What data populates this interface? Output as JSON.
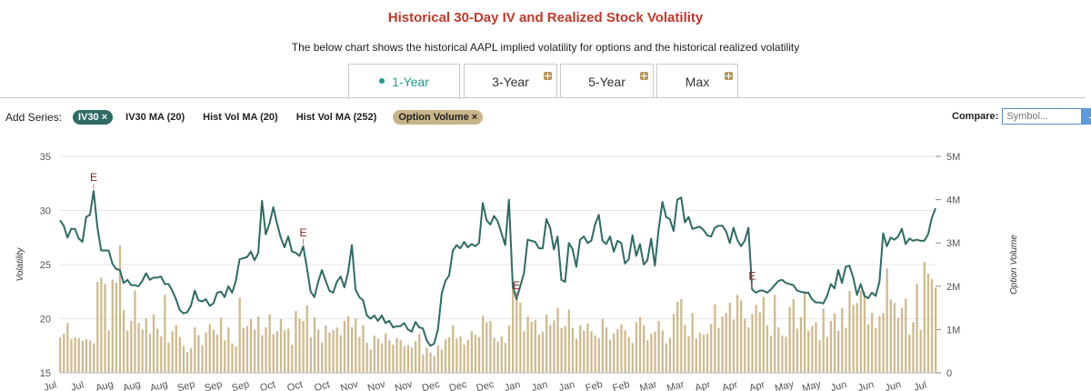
{
  "title": "Historical 30-Day IV and Realized Stock Volatility",
  "subtitle": "The below chart shows the historical AAPL implied volatility for options and the historical realized volatility",
  "tabs": [
    {
      "label": "1-Year",
      "active": true
    },
    {
      "label": "3-Year",
      "active": false
    },
    {
      "label": "5-Year",
      "active": false
    },
    {
      "label": "Max",
      "active": false
    }
  ],
  "series_bar": {
    "label": "Add Series:",
    "pills": [
      {
        "label": "IV30 ×",
        "style": "teal"
      },
      {
        "label": "IV30 MA (20)",
        "style": "plain"
      },
      {
        "label": "Hist Vol MA (20)",
        "style": "plain"
      },
      {
        "label": "Hist Vol MA (252)",
        "style": "plain"
      },
      {
        "label": "Option Volume ×",
        "style": "tan"
      }
    ]
  },
  "compare": {
    "label": "Compare:",
    "placeholder": "Symbol...",
    "button": "+"
  },
  "colors": {
    "iv_line": "#2e6b64",
    "volume_bar": "#cfba8f",
    "earnings_marker": "#8b1a1a",
    "title": "#c0392b",
    "tab_active": "#1f9c8f"
  },
  "chart_data": {
    "type": "line",
    "ylabel": "Volatility",
    "y2label": "Option Volume",
    "ylim": [
      15,
      35
    ],
    "yticks": [
      "35",
      "30",
      "25",
      "20",
      "15"
    ],
    "y2lim": [
      0,
      5000000
    ],
    "y2ticks": [
      "5M",
      "4M",
      "3M",
      "2M",
      "1M",
      "0"
    ],
    "xticks": [
      "Jul",
      "Jul",
      "Aug",
      "Aug",
      "Aug",
      "Sep",
      "Sep",
      "Sep",
      "Oct",
      "Oct",
      "Oct",
      "Nov",
      "Nov",
      "Nov",
      "Dec",
      "Dec",
      "Dec",
      "Jan",
      "Jan",
      "Jan",
      "Feb",
      "Feb",
      "Mar",
      "Mar",
      "Apr",
      "Apr",
      "Apr",
      "May",
      "May",
      "Jun",
      "Jun",
      "Jun",
      "Jul"
    ],
    "series": [
      {
        "name": "IV30",
        "type": "line",
        "values": [
          29.1,
          28.6,
          27.5,
          28.3,
          28.3,
          27.4,
          27.1,
          29.4,
          29.6,
          31.8,
          28.4,
          26.3,
          26.3,
          26.3,
          25.1,
          24.6,
          24.5,
          23.3,
          23.6,
          23.1,
          23.1,
          23.0,
          23.5,
          24.2,
          23.6,
          23.8,
          23.8,
          23.9,
          23.2,
          23.2,
          22.6,
          21.8,
          20.8,
          20.5,
          20.6,
          21.2,
          22.6,
          21.7,
          21.6,
          21.8,
          21.2,
          21.4,
          22.4,
          22.5,
          22.0,
          23.0,
          22.4,
          23.5,
          25.5,
          25.6,
          25.7,
          26.2,
          25.4,
          26.1,
          30.9,
          27.8,
          28.8,
          30.3,
          28.8,
          27.5,
          26.6,
          27.6,
          26.2,
          26.1,
          25.8,
          26.7,
          24.7,
          22.5,
          22.0,
          23.4,
          24.5,
          23.5,
          22.6,
          22.4,
          23.4,
          23.9,
          22.9,
          24.3,
          26.8,
          22.7,
          22.0,
          21.7,
          20.3,
          20.0,
          20.3,
          19.8,
          20.3,
          19.6,
          19.8,
          19.2,
          19.3,
          19.3,
          19.6,
          19.0,
          18.8,
          19.7,
          19.2,
          19.1,
          18.0,
          17.5,
          17.7,
          19.0,
          22.3,
          23.5,
          24.0,
          26.3,
          26.8,
          26.5,
          27.1,
          26.6,
          26.9,
          26.7,
          27.0,
          30.7,
          29.1,
          28.7,
          29.5,
          29.0,
          27.9,
          26.8,
          31.0,
          23.0,
          21.8,
          23.0,
          24.2,
          27.3,
          27.2,
          27.1,
          26.5,
          26.5,
          29.2,
          28.4,
          26.4,
          27.6,
          23.6,
          23.4,
          27.0,
          26.4,
          24.8,
          27.3,
          27.6,
          27.0,
          27.2,
          28.7,
          29.6,
          27.2,
          26.9,
          27.6,
          26.2,
          27.2,
          27.0,
          25.1,
          25.5,
          27.7,
          25.8,
          26.9,
          25.0,
          25.4,
          27.4,
          24.9,
          28.3,
          30.8,
          29.4,
          29.2,
          28.1,
          31.0,
          31.2,
          28.9,
          29.4,
          28.3,
          28.4,
          28.5,
          28.2,
          27.7,
          27.6,
          28.4,
          28.6,
          28.6,
          28.1,
          27.0,
          28.4,
          27.3,
          26.7,
          27.2,
          28.4,
          22.7,
          22.4,
          22.6,
          22.6,
          22.4,
          22.7,
          23.1,
          23.5,
          23.6,
          23.3,
          23.2,
          23.1,
          22.6,
          22.5,
          22.4,
          22.4,
          21.8,
          21.5,
          21.5,
          21.4,
          22.1,
          23.2,
          22.8,
          24.5,
          23.3,
          24.8,
          24.9,
          23.8,
          22.2,
          23.2,
          22.1,
          21.9,
          22.4,
          22.1,
          23.4,
          27.9,
          26.7,
          27.5,
          27.3,
          27.6,
          28.3,
          26.9,
          27.4,
          27.2,
          27.3,
          27.2,
          27.2,
          27.8,
          29.3,
          30.2
        ],
        "annotations": [
          {
            "index": 9,
            "label": "E"
          },
          {
            "index": 65,
            "label": "E"
          },
          {
            "index": 122,
            "label": "E"
          },
          {
            "index": 185,
            "label": "E"
          }
        ]
      },
      {
        "name": "Option Volume",
        "type": "bar",
        "values": [
          820000,
          900000,
          1150000,
          780000,
          820000,
          800000,
          740000,
          770000,
          750000,
          680000,
          2100000,
          2200000,
          2050000,
          980000,
          2150000,
          2080000,
          2950000,
          1450000,
          980000,
          1200000,
          1900000,
          1150000,
          1000000,
          1250000,
          900000,
          1350000,
          1020000,
          840000,
          1800000,
          700000,
          960000,
          1100000,
          830000,
          620000,
          480000,
          570000,
          1050000,
          870000,
          640000,
          930000,
          1120000,
          1000000,
          880000,
          1270000,
          750000,
          1050000,
          680000,
          610000,
          1730000,
          1040000,
          1080000,
          1240000,
          1000000,
          1300000,
          870000,
          1050000,
          1350000,
          890000,
          960000,
          1240000,
          980000,
          1020000,
          650000,
          1430000,
          1250000,
          1200000,
          1560000,
          820000,
          1280000,
          1000000,
          700000,
          1100000,
          930000,
          990000,
          1050000,
          870000,
          1200000,
          1310000,
          1050000,
          1250000,
          830000,
          1100000,
          700000,
          540000,
          860000,
          790000,
          680000,
          910000,
          750000,
          650000,
          800000,
          760000,
          620000,
          640000,
          590000,
          730000,
          900000,
          420000,
          580000,
          470000,
          390000,
          630000,
          540000,
          770000,
          820000,
          1100000,
          790000,
          840000,
          650000,
          760000,
          960000,
          880000,
          830000,
          1320000,
          1160000,
          1200000,
          810000,
          720000,
          840000,
          690000,
          1090000,
          1990000,
          1740000,
          1620000,
          960000,
          1300000,
          1180000,
          1220000,
          880000,
          950000,
          1340000,
          1100000,
          1210000,
          1500000,
          1040000,
          1080000,
          1460000,
          1040000,
          790000,
          1100000,
          970000,
          1140000,
          960000,
          860000,
          800000,
          1250000,
          1050000,
          760000,
          910000,
          1010000,
          1120000,
          980000,
          820000,
          690000,
          1170000,
          1290000,
          1100000,
          750000,
          900000,
          950000,
          1200000,
          980000,
          680000,
          810000,
          1360000,
          1640000,
          1700000,
          1110000,
          850000,
          1380000,
          800000,
          920000,
          880000,
          900000,
          1130000,
          1580000,
          1040000,
          1300000,
          1380000,
          1620000,
          1230000,
          1800000,
          1670000,
          1250000,
          1050000,
          1360000,
          1570000,
          1400000,
          1750000,
          1100000,
          860000,
          1800000,
          1050000,
          860000,
          830000,
          1520000,
          1700000,
          1020000,
          1290000,
          1880000,
          970000,
          1080000,
          1170000,
          750000,
          1480000,
          830000,
          1200000,
          1370000,
          970000,
          1490000,
          1040000,
          1890000,
          1570000,
          1610000,
          1900000,
          1870000,
          1120000,
          1380000,
          1040000,
          1310000,
          1380000,
          2410000,
          1690000,
          1610000,
          1270000,
          1500000,
          1710000,
          880000,
          1170000,
          2060000,
          990000,
          2560000,
          2290000,
          2170000,
          1970000
        ]
      }
    ]
  }
}
